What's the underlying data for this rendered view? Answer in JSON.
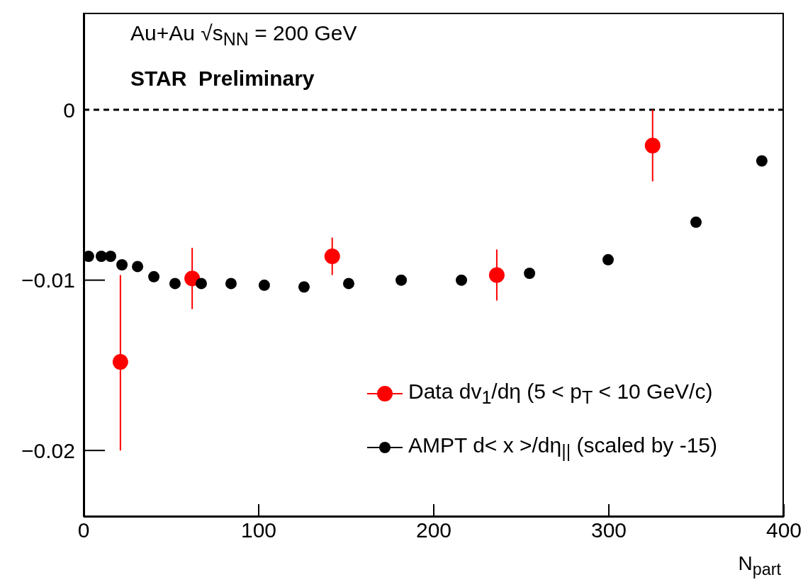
{
  "chart_data": {
    "type": "scatter",
    "xlabel": "N$_{part}$",
    "annotations": [
      "Au+Au √s$_{NN}$ = 200 GeV",
      "STAR  Preliminary"
    ],
    "xlim": [
      0,
      400
    ],
    "xticks": [
      0,
      100,
      200,
      300,
      400
    ],
    "ylim": [
      -0.0239,
      0.0057
    ],
    "yticks": [
      {
        "value": 0,
        "label": "0"
      },
      {
        "value": -0.01,
        "label": "−0.01"
      },
      {
        "value": -0.02,
        "label": "−0.02"
      }
    ],
    "grid": false,
    "legend": "bottom right",
    "marker": "circle",
    "ref_lines": [
      {
        "axis": "y",
        "value": 0,
        "line_style": "dashed",
        "color": "#000000"
      }
    ],
    "series": [
      {
        "name": "Data dv$_{1}$/dη (5 < p$_{T}$ < 10 GeV/c)",
        "color": "#ff0000",
        "x": [
          21,
          62,
          142,
          236,
          325
        ],
        "values": [
          -0.0148,
          -0.0099,
          -0.0086,
          -0.0097,
          -0.0021
        ],
        "errors": [
          [
            -0.02,
            -0.0097
          ],
          [
            -0.0117,
            -0.0081
          ],
          [
            -0.0097,
            -0.0075
          ],
          [
            -0.0112,
            -0.0082
          ],
          [
            -0.0042,
            0
          ]
        ]
      },
      {
        "name": "AMPT d< x >/dη$_{||}$ (scaled by -15)",
        "color": "#000000",
        "x": [
          2.8,
          10.1,
          15.4,
          21.9,
          30.8,
          40.1,
          52.2,
          67.2,
          84.2,
          103.2,
          125.9,
          151.4,
          181.4,
          215.8,
          254.7,
          299.6,
          349.8,
          387.4
        ],
        "values": [
          -0.0086,
          -0.0086,
          -0.0086,
          -0.0091,
          -0.0092,
          -0.0098,
          -0.0102,
          -0.0102,
          -0.0102,
          -0.0103,
          -0.0104,
          -0.0102,
          -0.01,
          -0.01,
          -0.0096,
          -0.0088,
          -0.0066,
          -0.003
        ]
      }
    ]
  }
}
